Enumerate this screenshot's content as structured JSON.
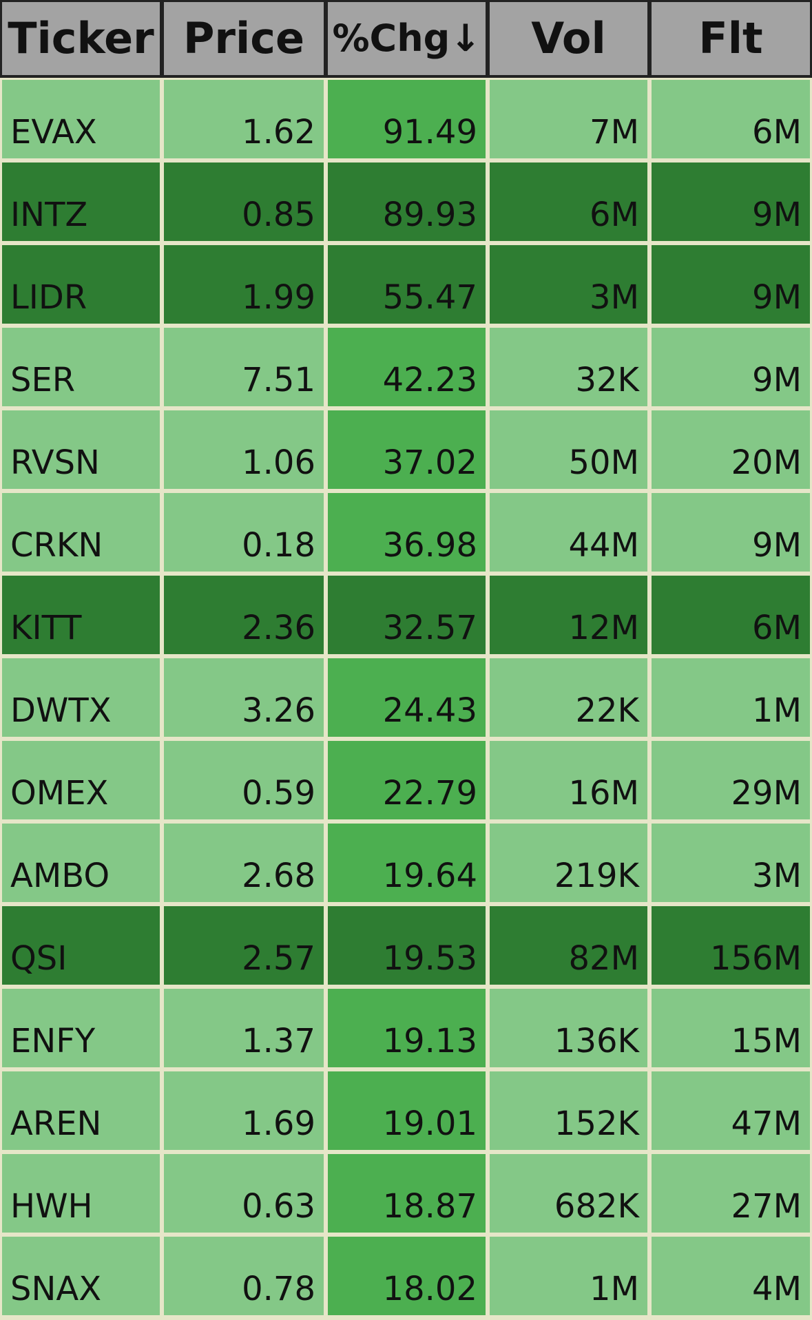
{
  "columns": [
    {
      "key": "ticker",
      "label": "Ticker"
    },
    {
      "key": "price",
      "label": "Price"
    },
    {
      "key": "chg",
      "label": "%Chg↓"
    },
    {
      "key": "vol",
      "label": "Vol"
    },
    {
      "key": "flt",
      "label": "Flt"
    }
  ],
  "colors": {
    "light_green": "#84c887",
    "medium_green": "#4caf50",
    "dark_green": "#2e7d32",
    "header_gray": "#a3a3a3",
    "grid_line": "#e6e6c8"
  },
  "rows": [
    {
      "ticker": "EVAX",
      "price": "1.62",
      "chg": "91.49",
      "vol": "7M",
      "flt": "6M",
      "highlight": false
    },
    {
      "ticker": "INTZ",
      "price": "0.85",
      "chg": "89.93",
      "vol": "6M",
      "flt": "9M",
      "highlight": true
    },
    {
      "ticker": "LIDR",
      "price": "1.99",
      "chg": "55.47",
      "vol": "3M",
      "flt": "9M",
      "highlight": true
    },
    {
      "ticker": "SER",
      "price": "7.51",
      "chg": "42.23",
      "vol": "32K",
      "flt": "9M",
      "highlight": false
    },
    {
      "ticker": "RVSN",
      "price": "1.06",
      "chg": "37.02",
      "vol": "50M",
      "flt": "20M",
      "highlight": false
    },
    {
      "ticker": "CRKN",
      "price": "0.18",
      "chg": "36.98",
      "vol": "44M",
      "flt": "9M",
      "highlight": false
    },
    {
      "ticker": "KITT",
      "price": "2.36",
      "chg": "32.57",
      "vol": "12M",
      "flt": "6M",
      "highlight": true
    },
    {
      "ticker": "DWTX",
      "price": "3.26",
      "chg": "24.43",
      "vol": "22K",
      "flt": "1M",
      "highlight": false
    },
    {
      "ticker": "OMEX",
      "price": "0.59",
      "chg": "22.79",
      "vol": "16M",
      "flt": "29M",
      "highlight": false
    },
    {
      "ticker": "AMBO",
      "price": "2.68",
      "chg": "19.64",
      "vol": "219K",
      "flt": "3M",
      "highlight": false
    },
    {
      "ticker": "QSI",
      "price": "2.57",
      "chg": "19.53",
      "vol": "82M",
      "flt": "156M",
      "highlight": true
    },
    {
      "ticker": "ENFY",
      "price": "1.37",
      "chg": "19.13",
      "vol": "136K",
      "flt": "15M",
      "highlight": false
    },
    {
      "ticker": "AREN",
      "price": "1.69",
      "chg": "19.01",
      "vol": "152K",
      "flt": "47M",
      "highlight": false
    },
    {
      "ticker": "HWH",
      "price": "0.63",
      "chg": "18.87",
      "vol": "682K",
      "flt": "27M",
      "highlight": false
    },
    {
      "ticker": "SNAX",
      "price": "0.78",
      "chg": "18.02",
      "vol": "1M",
      "flt": "4M",
      "highlight": false
    }
  ]
}
